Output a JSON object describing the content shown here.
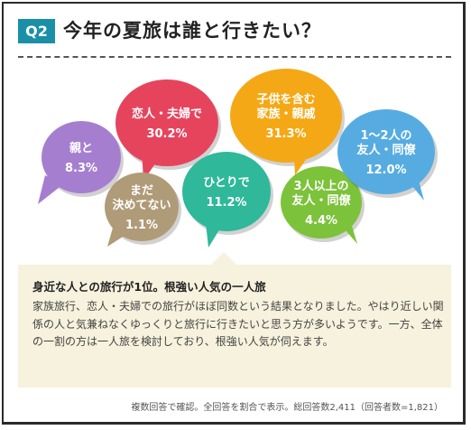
{
  "header": {
    "badge": "Q2",
    "title": "今年の夏旅は誰と行きたい？"
  },
  "chart_data": {
    "type": "bubble",
    "series": [
      {
        "label": "親と",
        "value_text": "8.3%",
        "value": 8.3,
        "color": "#a67ed0"
      },
      {
        "label": "恋人・夫婦で",
        "value_text": "30.2%",
        "value": 30.2,
        "color": "#e6445d"
      },
      {
        "label": "まだ決めてない",
        "value_text": "1.1%",
        "value": 1.1,
        "color": "#b09b78"
      },
      {
        "label": "ひとりで",
        "value_text": "11.2%",
        "value": 11.2,
        "color": "#2fb89a"
      },
      {
        "label": "子供を含む家族・親戚",
        "value_text": "31.3%",
        "value": 31.3,
        "color": "#f5a815"
      },
      {
        "label": "3人以上の友人・同僚",
        "value_text": "4.4%",
        "value": 4.4,
        "color": "#7cc23a"
      },
      {
        "label": "1～2人の友人・同僚",
        "value_text": "12.0%",
        "value": 12.0,
        "color": "#56ace0"
      }
    ]
  },
  "bubbles": [
    {
      "lines": [
        "親と"
      ],
      "value": "8.3%"
    },
    {
      "lines": [
        "恋人・夫婦で"
      ],
      "value": "30.2%"
    },
    {
      "lines": [
        "まだ",
        "決めてない"
      ],
      "value": "1.1%"
    },
    {
      "lines": [
        "ひとりで"
      ],
      "value": "11.2%"
    },
    {
      "lines": [
        "子供を含む",
        "家族・親戚"
      ],
      "value": "31.3%"
    },
    {
      "lines": [
        "3人以上の",
        "友人・同僚"
      ],
      "value": "4.4%"
    },
    {
      "lines": [
        "1～2人の",
        "友人・同僚"
      ],
      "value": "12.0%"
    }
  ],
  "summary": {
    "heading": "身近な人との旅行が1位。根強い人気の一人旅",
    "body": "家族旅行、恋人・夫婦での旅行がほぼ同数という結果となりました。やはり近しい関係の人と気兼ねなくゆっくりと旅行に行きたいと思う方が多いようです。一方、全体の一割の方は一人旅を検討しており、根強い人気が伺えます。"
  },
  "footnote": "複数回答で確認。全回答を割合で表示。総回答数2,411（回答者数=1,821）"
}
